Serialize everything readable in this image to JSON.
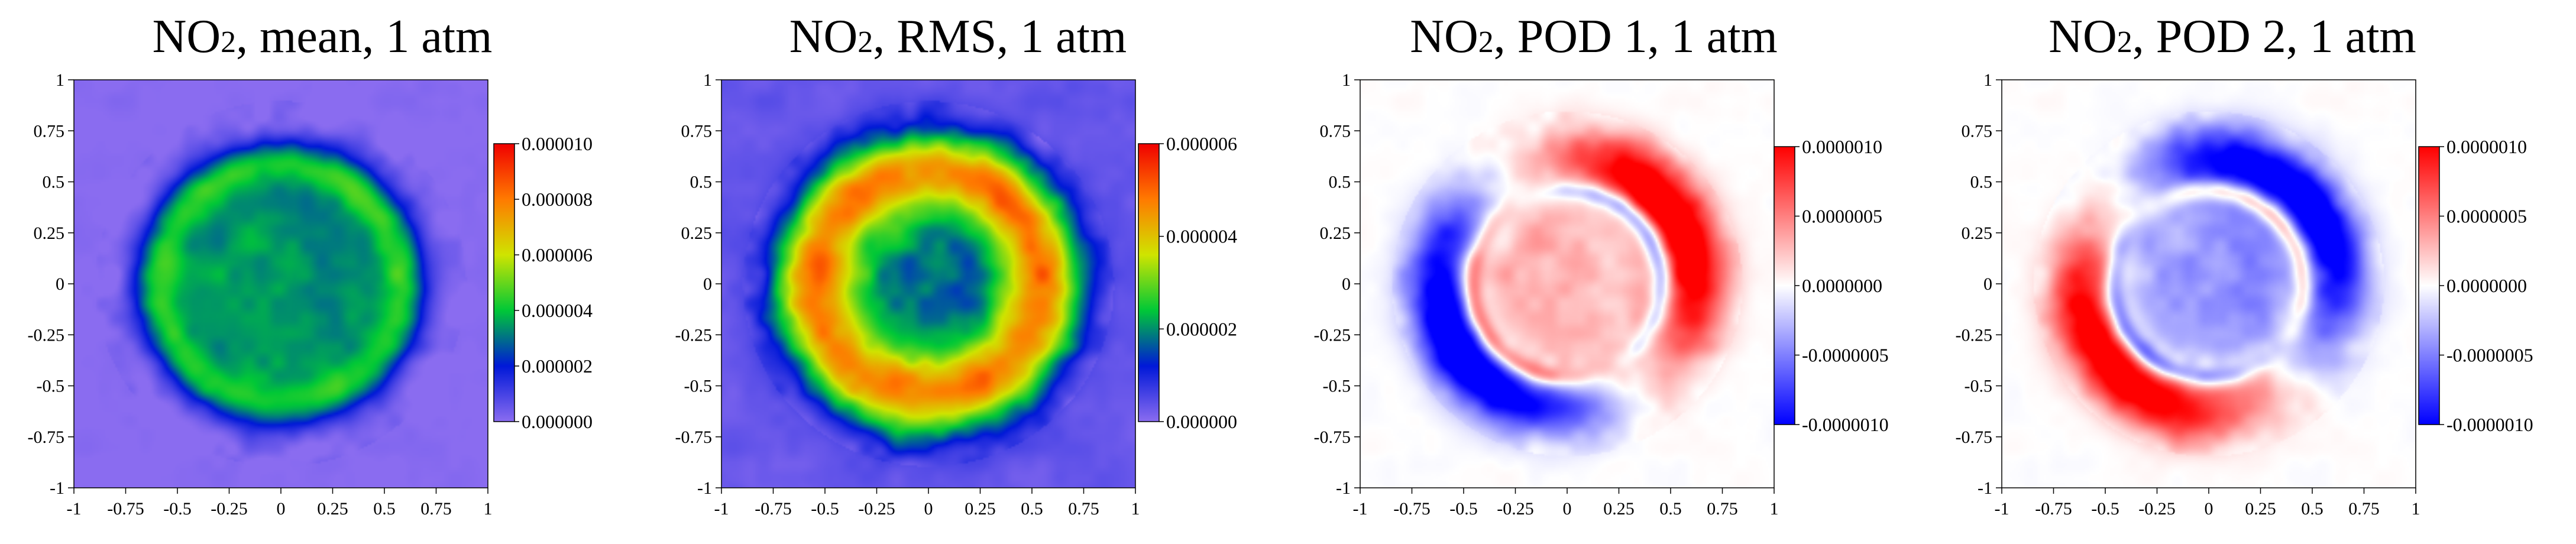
{
  "chart_data": [
    {
      "type": "heatmap",
      "title": "NO₂, mean, 1 atm",
      "title_parts": {
        "species": "NO",
        "subscript": "2",
        "rest": ", mean, 1 atm"
      },
      "xlabel": "",
      "ylabel": "",
      "xlim": [
        -1,
        1
      ],
      "ylim": [
        -1,
        1
      ],
      "x_ticks": [
        "-1",
        "-0.75",
        "-0.5",
        "-0.25",
        "0",
        "0.25",
        "0.5",
        "0.75",
        "1"
      ],
      "y_ticks": [
        "1",
        "0.75",
        "0.5",
        "0.25",
        "0",
        "-0.25",
        "-0.5",
        "-0.75",
        "-1"
      ],
      "colormap": "rainbow",
      "colorbar": {
        "range": [
          0.0,
          1e-05
        ],
        "tick_values": [
          1e-05,
          8e-06,
          6e-06,
          4e-06,
          2e-06,
          0.0
        ],
        "tick_labels": [
          "0.000010",
          "0.000008",
          "0.000006",
          "0.000004",
          "0.000002",
          "0.000000"
        ]
      },
      "field": {
        "pattern": "ring",
        "ring_radius": 0.58,
        "ring_width": 0.13,
        "ring_value": 4.5e-06,
        "inner_value": 3.5e-06,
        "background_value": 0.0
      }
    },
    {
      "type": "heatmap",
      "title": "NO₂, RMS, 1 atm",
      "title_parts": {
        "species": "NO",
        "subscript": "2",
        "rest": ", RMS, 1 atm"
      },
      "xlabel": "",
      "ylabel": "",
      "xlim": [
        -1,
        1
      ],
      "ylim": [
        -1,
        1
      ],
      "x_ticks": [
        "-1",
        "-0.75",
        "-0.5",
        "-0.25",
        "0",
        "0.25",
        "0.5",
        "0.75",
        "1"
      ],
      "y_ticks": [
        "1",
        "0.75",
        "0.5",
        "0.25",
        "0",
        "-0.25",
        "-0.5",
        "-0.75",
        "-1"
      ],
      "colormap": "rainbow",
      "colorbar": {
        "range": [
          0.0,
          6e-06
        ],
        "tick_values": [
          6e-06,
          4e-06,
          2e-06,
          0.0
        ],
        "tick_labels": [
          "0.000006",
          "0.000004",
          "0.000002",
          "0.000000"
        ]
      },
      "field": {
        "pattern": "ring",
        "ring_radius": 0.55,
        "ring_width": 0.2,
        "ring_value": 4.8e-06,
        "inner_value": 1.8e-06,
        "background_value": 3e-07
      }
    },
    {
      "type": "heatmap",
      "title": "NO₂, POD 1, 1 atm",
      "title_parts": {
        "species": "NO",
        "subscript": "2",
        "rest": ", POD 1, 1 atm"
      },
      "xlabel": "",
      "ylabel": "",
      "xlim": [
        -1,
        1
      ],
      "ylim": [
        -1,
        1
      ],
      "x_ticks": [
        "-1",
        "-0.75",
        "-0.5",
        "-0.25",
        "0",
        "0.25",
        "0.5",
        "0.75",
        "1"
      ],
      "y_ticks": [
        "1",
        "0.75",
        "0.5",
        "0.25",
        "0",
        "-0.25",
        "-0.5",
        "-0.75",
        "-1"
      ],
      "colormap": "blue-white-red",
      "colorbar": {
        "range": [
          -1e-06,
          1e-06
        ],
        "tick_values": [
          1e-06,
          5e-07,
          0.0,
          -5e-07,
          -1e-06
        ],
        "tick_labels": [
          "0.0000010",
          "0.0000005",
          "0.0000000",
          "-0.0000005",
          "-0.0000010"
        ]
      },
      "field": {
        "pattern": "dipole_ring",
        "ring_radius": 0.62,
        "ring_width": 0.16,
        "lobe_direction_deg": 30,
        "inner_value": 3e-07,
        "outer_amplitude": 1e-06
      }
    },
    {
      "type": "heatmap",
      "title": "NO₂, POD 2, 1 atm",
      "title_parts": {
        "species": "NO",
        "subscript": "2",
        "rest": ", POD 2, 1 atm"
      },
      "xlabel": "",
      "ylabel": "",
      "xlim": [
        -1,
        1
      ],
      "ylim": [
        -1,
        1
      ],
      "x_ticks": [
        "-1",
        "-0.75",
        "-0.5",
        "-0.25",
        "0",
        "0.25",
        "0.5",
        "0.75",
        "1"
      ],
      "y_ticks": [
        "1",
        "0.75",
        "0.5",
        "0.25",
        "0",
        "-0.25",
        "-0.5",
        "-0.75",
        "-1"
      ],
      "colormap": "blue-white-red",
      "colorbar": {
        "range": [
          -1e-06,
          1e-06
        ],
        "tick_values": [
          1e-06,
          5e-07,
          0.0,
          -5e-07,
          -1e-06
        ],
        "tick_labels": [
          "0.0000010",
          "0.0000005",
          "0.0000000",
          "-0.0000005",
          "-0.0000010"
        ]
      },
      "field": {
        "pattern": "dipole_ring",
        "ring_radius": 0.62,
        "ring_width": 0.16,
        "lobe_direction_deg": 225,
        "inner_value": -4e-07,
        "outer_amplitude": 1e-06
      }
    }
  ]
}
